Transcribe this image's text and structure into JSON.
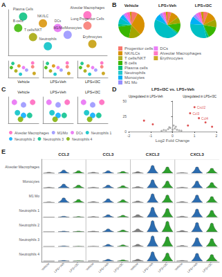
{
  "chart_data": [
    {
      "panel": "A",
      "type": "scatter",
      "tick_labels": false,
      "xlim": [
        0,
        10
      ],
      "ylim": [
        0,
        10
      ],
      "subplots": [
        "Vehicle",
        "LPS+Veh",
        "LPS+I3C"
      ],
      "series": [
        {
          "name": "Plasma Cells",
          "color": "#00bf7d",
          "x": [
            1.5
          ],
          "y": [
            8.5
          ]
        },
        {
          "name": "Alveolar Macrophages",
          "color": "#ff62bc",
          "x": [
            8
          ],
          "y": [
            8.8
          ]
        },
        {
          "name": "B-cells",
          "color": "#39b600",
          "x": [
            1
          ],
          "y": [
            6
          ]
        },
        {
          "name": "NK/ILC",
          "color": "#d89000",
          "x": [
            3.5
          ],
          "y": [
            7
          ]
        },
        {
          "name": "Lung Progenitor Cells",
          "color": "#f8766d",
          "x": [
            8
          ],
          "y": [
            6.5
          ]
        },
        {
          "name": "DCs",
          "color": "#e76bf3",
          "x": [
            5
          ],
          "y": [
            6
          ]
        },
        {
          "name": "M1/Mo/Monocytes",
          "color": "#9590ff",
          "x": [
            6
          ],
          "y": [
            4.5
          ]
        },
        {
          "name": "T cells/NKT",
          "color": "#a3a500",
          "x": [
            2.5
          ],
          "y": [
            4
          ]
        },
        {
          "name": "Neutrophils",
          "color": "#00bfc4",
          "x": [
            4
          ],
          "y": [
            2
          ]
        },
        {
          "name": "Erythrocytes",
          "color": "#c49a00",
          "x": [
            8.5
          ],
          "y": [
            2.5
          ]
        }
      ]
    },
    {
      "panel": "B",
      "type": "pie",
      "categories": [
        "Progenitor cells",
        "NK/ILCs",
        "T cells/NKT",
        "B cells",
        "Plasma cells",
        "Neutrophils",
        "Monocytes",
        "M1 Mo",
        "DCs",
        "Alveolar Macrophages",
        "Erythrocytes"
      ],
      "colors": [
        "#f8766d",
        "#d89000",
        "#a3a500",
        "#39b600",
        "#00bf7d",
        "#00bfc4",
        "#00b0f6",
        "#9590ff",
        "#e76bf3",
        "#ff62bc",
        "#c49a00"
      ],
      "pies": [
        {
          "title": "Vehicle",
          "values": [
            8,
            30,
            15,
            20,
            3,
            8,
            5,
            2,
            3,
            4,
            2
          ]
        },
        {
          "title": "LPS+Veh",
          "values": [
            5,
            10,
            8,
            12,
            2,
            45,
            8,
            3,
            2,
            3,
            2
          ]
        },
        {
          "title": "LPS+I3C",
          "values": [
            6,
            12,
            10,
            15,
            3,
            30,
            10,
            4,
            3,
            4,
            3
          ]
        }
      ]
    },
    {
      "panel": "C",
      "type": "scatter",
      "tick_labels": false,
      "xlim": [
        0,
        10
      ],
      "ylim": [
        0,
        10
      ],
      "subplots": [
        "Vehicle",
        "LPS+Veh",
        "LPS+I3C"
      ],
      "series": [
        {
          "name": "Alveolar Macrophages",
          "color": "#ff62bc",
          "x": [
            8
          ],
          "y": [
            8
          ]
        },
        {
          "name": "M1/Mo",
          "color": "#9590ff",
          "x": [
            5
          ],
          "y": [
            7
          ]
        },
        {
          "name": "DCs",
          "color": "#e76bf3",
          "x": [
            2
          ],
          "y": [
            8
          ]
        },
        {
          "name": "Neutrophils 1",
          "color": "#00bfc4",
          "x": [
            3
          ],
          "y": [
            4
          ]
        },
        {
          "name": "Neutrophils 2",
          "color": "#00a9ff",
          "x": [
            5
          ],
          "y": [
            3
          ]
        },
        {
          "name": "Neutrophils 3",
          "color": "#00c08b",
          "x": [
            7
          ],
          "y": [
            3
          ]
        },
        {
          "name": "Neutrophils 4",
          "color": "#7cae00",
          "x": [
            4
          ],
          "y": [
            1.5
          ]
        }
      ]
    },
    {
      "panel": "D",
      "type": "scatter",
      "title": "LPS+I3C vs. LPS+Veh",
      "xlabel": "Log2 Fold Change",
      "annotations": [
        "Upregulated in LPS+Veh",
        "Upregulated in LPS+I3C"
      ],
      "xlim": [
        -2,
        2
      ],
      "xticks": [
        -2,
        -1,
        0,
        1,
        2
      ],
      "ylim": [
        0,
        50
      ],
      "yticks": [
        0,
        25,
        50
      ],
      "series": [
        {
          "color": "#9e9e9e",
          "x": [
            -0.3,
            -0.2,
            -0.1,
            0,
            0.1,
            0.2,
            0.3,
            -0.5,
            0.4,
            -0.4,
            0.15,
            -0.15,
            0.05
          ],
          "y": [
            2,
            4,
            6,
            3,
            5,
            3,
            2,
            1,
            1.5,
            2.5,
            8,
            7,
            10
          ]
        },
        {
          "color": "#d62728",
          "x": [
            1.5,
            -0.9,
            -1.3,
            0.7,
            1.8
          ],
          "y": [
            15,
            12,
            18,
            10,
            8
          ]
        },
        {
          "color": "#d62728",
          "x": [
            1.0,
            0.8,
            1.2
          ],
          "y": [
            40,
            30,
            22
          ],
          "labels": [
            "Cxcl2",
            "Ccl3",
            "Ccl4"
          ]
        }
      ]
    },
    {
      "panel": "E",
      "type": "violin",
      "tick_labels": false,
      "ylim": [
        0,
        4
      ],
      "genes": [
        "CCL2",
        "CCL3",
        "CXCL2",
        "CXCL3"
      ],
      "rows": [
        "Alveolar Macrophages",
        "Monocytes",
        "M1 Mo",
        "Neutrophils 1",
        "Neutrophils 2",
        "Neutrophils 3",
        "Neutrophils 4"
      ],
      "conditions": [
        "Vehicle",
        "LPS+Veh",
        "LPS+I3C"
      ],
      "colors": [
        "#7f7f7f",
        "#2b6cb0",
        "#2ca02c"
      ],
      "values": [
        [
          [
            0.3,
            1.0,
            0.8
          ],
          [
            0.2,
            1.2,
            0.9
          ],
          [
            0.2,
            1.5,
            1.0
          ],
          [
            0,
            0.3,
            0.2
          ],
          [
            0,
            0.2,
            0.2
          ],
          [
            0,
            0.2,
            0.1
          ],
          [
            0,
            0.2,
            0.1
          ]
        ],
        [
          [
            0.3,
            0.8,
            0.6
          ],
          [
            0.2,
            0.9,
            0.7
          ],
          [
            0.3,
            1.2,
            0.9
          ],
          [
            0.2,
            0.8,
            0.6
          ],
          [
            0.2,
            0.9,
            0.6
          ],
          [
            0.1,
            0.7,
            0.5
          ],
          [
            0.1,
            0.6,
            0.4
          ]
        ],
        [
          [
            0.5,
            2.5,
            2.0
          ],
          [
            0.4,
            2.6,
            2.2
          ],
          [
            0.5,
            2.8,
            2.4
          ],
          [
            0.8,
            3.2,
            2.8
          ],
          [
            0.9,
            3.6,
            3.4
          ],
          [
            0.7,
            3.4,
            3.1
          ],
          [
            0.6,
            3.0,
            2.6
          ]
        ],
        [
          [
            0.2,
            2.0,
            1.6
          ],
          [
            0.2,
            2.2,
            1.7
          ],
          [
            0.3,
            2.4,
            1.9
          ],
          [
            0.3,
            2.6,
            2.2
          ],
          [
            0.4,
            3.0,
            2.8
          ],
          [
            0.3,
            2.8,
            2.5
          ],
          [
            0.2,
            2.5,
            2.1
          ]
        ]
      ]
    }
  ]
}
